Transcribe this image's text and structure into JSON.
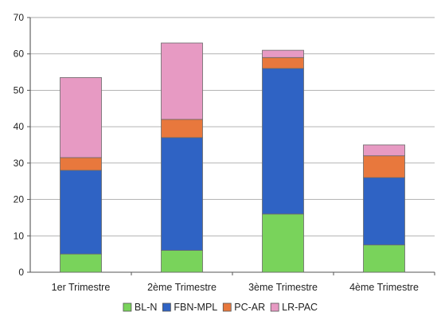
{
  "chart_data": {
    "type": "bar",
    "stacked": true,
    "title": "",
    "xlabel": "",
    "ylabel": "",
    "ylim": [
      0,
      70
    ],
    "yticks": [
      0,
      10,
      20,
      30,
      40,
      50,
      60,
      70
    ],
    "grid": "horizontal",
    "legend_position": "bottom",
    "categories": [
      "1er Trimestre",
      "2ème Trimestre",
      "3ème Trimestre",
      "4ème Trimestre"
    ],
    "series": [
      {
        "name": "BL-N",
        "color": "#79d35b",
        "values": [
          5,
          6,
          16,
          7.5
        ]
      },
      {
        "name": "FBN-MPL",
        "color": "#2f63c4",
        "values": [
          23,
          31,
          40,
          18.5
        ]
      },
      {
        "name": "PC-AR",
        "color": "#e8783d",
        "values": [
          3.5,
          5,
          3,
          6
        ]
      },
      {
        "name": "LR-PAC",
        "color": "#e79ac3",
        "values": [
          22,
          21,
          2,
          3
        ]
      }
    ]
  }
}
